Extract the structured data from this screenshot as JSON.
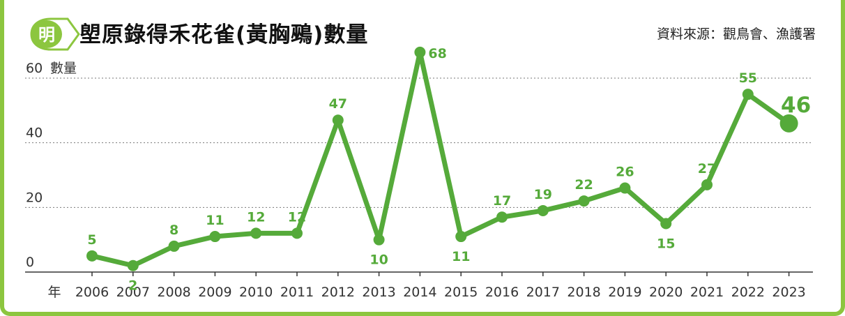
{
  "header": {
    "logo_text": "明",
    "title": "塱原錄得禾花雀(黃胸鵐)數量",
    "source": "資料來源：觀鳥會、漁護署"
  },
  "colors": {
    "line": "#55aa3a",
    "frame": "#8cc63f",
    "logo_bg": "#8cc63f"
  },
  "icons": {
    "logo": "speech-bubble-logo-icon"
  },
  "chart_data": {
    "type": "line",
    "title": "塱原錄得禾花雀(黃胸鵐)數量",
    "xlabel": "年",
    "ylabel": "數量",
    "x": [
      "2006",
      "2007",
      "2008",
      "2009",
      "2010",
      "2011",
      "2012",
      "2013",
      "2014",
      "2015",
      "2016",
      "2017",
      "2018",
      "2019",
      "2020",
      "2021",
      "2022",
      "2023"
    ],
    "values": [
      5,
      2,
      8,
      11,
      12,
      12,
      47,
      10,
      68,
      11,
      17,
      19,
      22,
      26,
      15,
      27,
      55,
      46
    ],
    "y_ticks": [
      "0",
      "20",
      "40",
      "60"
    ],
    "ylim": [
      0,
      60
    ],
    "grid": true,
    "legend": "none",
    "highlight_last": true
  }
}
